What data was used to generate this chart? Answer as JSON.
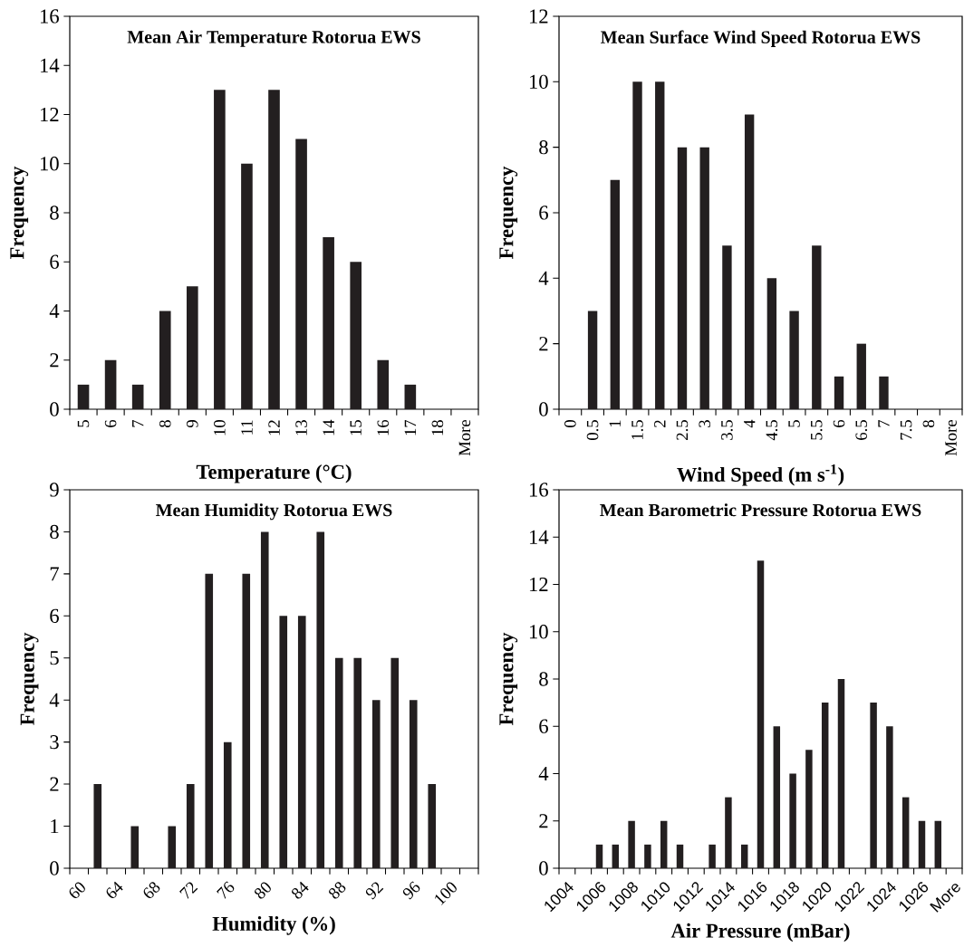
{
  "chart_data": [
    {
      "type": "bar",
      "title": "Mean Air Temperature Rotorua EWS",
      "xlabel": "Temperature (°C)",
      "ylabel": "Frequency",
      "color": "#231f20",
      "categories": [
        "5",
        "6",
        "7",
        "8",
        "9",
        "10",
        "11",
        "12",
        "13",
        "14",
        "15",
        "16",
        "17",
        "18",
        "More"
      ],
      "values": [
        1,
        2,
        1,
        4,
        5,
        13,
        10,
        13,
        11,
        7,
        6,
        2,
        1,
        0,
        0
      ],
      "ylim": [
        0,
        16
      ],
      "yticks": [
        0,
        2,
        4,
        6,
        8,
        10,
        12,
        14,
        16
      ]
    },
    {
      "type": "bar",
      "title": "Mean Surface Wind Speed Rotorua EWS",
      "xlabel": "Wind Speed (m s$^{-1}$)",
      "ylabel": "Frequency",
      "color": "#231f20",
      "categories": [
        "0",
        "0.5",
        "1",
        "1.5",
        "2",
        "2.5",
        "3",
        "3.5",
        "4",
        "4.5",
        "5",
        "5.5",
        "6",
        "6.5",
        "7",
        "7.5",
        "8",
        "More"
      ],
      "values": [
        0,
        3,
        7,
        10,
        10,
        8,
        8,
        5,
        9,
        4,
        3,
        5,
        1,
        2,
        1,
        0,
        0,
        0
      ],
      "ylim": [
        0,
        12
      ],
      "yticks": [
        0,
        2,
        4,
        6,
        8,
        10,
        12
      ]
    },
    {
      "type": "bar",
      "title": "Mean Humidity Rotorua EWS",
      "xlabel": "Humidity (%)",
      "ylabel": "Frequency",
      "color": "#231f20",
      "categories": [
        "60",
        null,
        "64",
        null,
        "68",
        null,
        "72",
        null,
        "76",
        null,
        "80",
        null,
        "84",
        null,
        "88",
        null,
        "92",
        null,
        "96",
        null,
        "100",
        null
      ],
      "values": [
        0,
        2,
        0,
        1,
        0,
        1,
        2,
        7,
        3,
        7,
        8,
        6,
        6,
        8,
        5,
        5,
        4,
        5,
        4,
        2,
        0,
        0
      ],
      "ylim": [
        0,
        9
      ],
      "yticks": [
        0,
        1,
        2,
        3,
        4,
        5,
        6,
        7,
        8,
        9
      ]
    },
    {
      "type": "bar",
      "title": "Mean Barometric Pressure Rotorua EWS",
      "xlabel": "Air Pressure (mBar)",
      "ylabel": "Frequency",
      "color": "#231f20",
      "categories": [
        "1004",
        null,
        "1006",
        null,
        "1008",
        null,
        "1010",
        null,
        "1012",
        null,
        "1014",
        null,
        "1016",
        null,
        "1018",
        null,
        "1020",
        null,
        "1022",
        null,
        "1024",
        null,
        "1026",
        null,
        "More"
      ],
      "values": [
        0,
        0,
        1,
        1,
        2,
        1,
        2,
        1,
        0,
        1,
        3,
        1,
        13,
        6,
        4,
        5,
        7,
        8,
        0,
        7,
        6,
        3,
        2,
        2,
        0
      ],
      "ylim": [
        0,
        16
      ],
      "yticks": [
        0,
        2,
        4,
        6,
        8,
        10,
        12,
        14,
        16
      ]
    }
  ]
}
